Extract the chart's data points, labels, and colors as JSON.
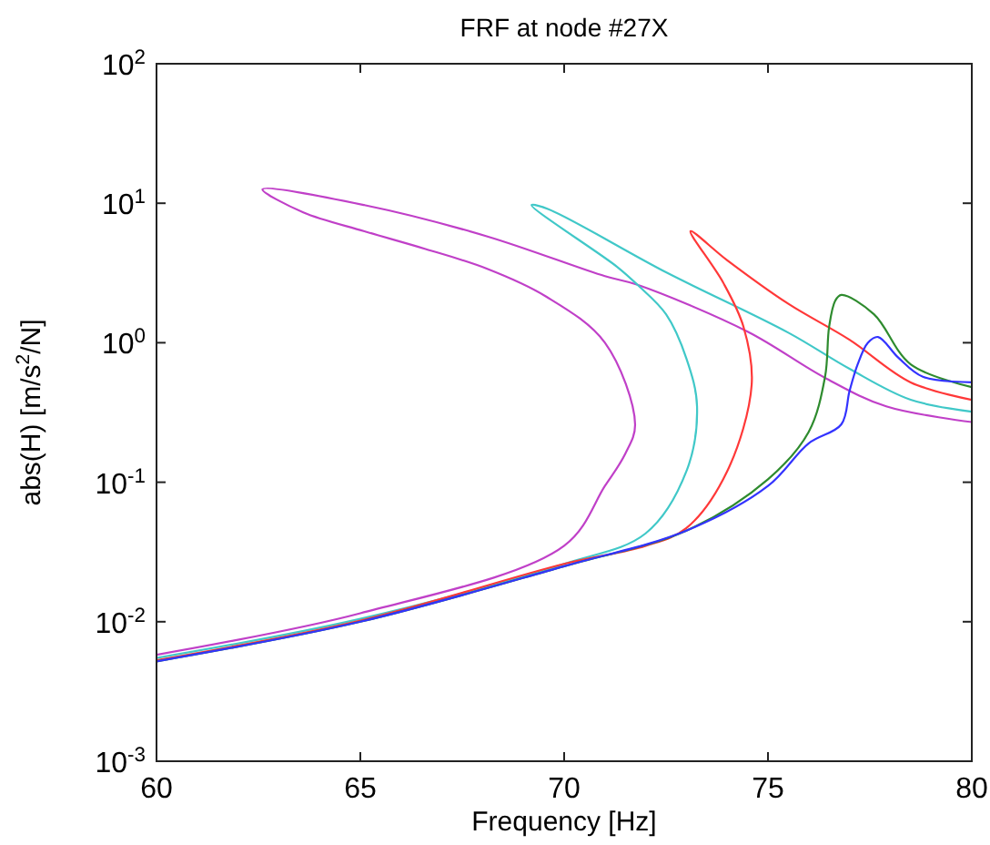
{
  "chart_data": {
    "type": "line",
    "title": "FRF at node #27X",
    "xlabel": "Frequency [Hz]",
    "ylabel": "abs(H) [m/s$^{2}$/N]",
    "log": "y",
    "grid": false,
    "marker": "none",
    "line_style": "solid",
    "xlim": [
      60,
      80
    ],
    "xticks": [
      60,
      65,
      70,
      75,
      80
    ],
    "ylim": [
      0.001,
      100
    ],
    "yticks": [
      {
        "value": 0.001,
        "label": "10$^{-3}$"
      },
      {
        "value": 0.01,
        "label": "10$^{-2}$"
      },
      {
        "value": 0.1,
        "label": "10$^{-1}$"
      },
      {
        "value": 1,
        "label": "10$^{0}$"
      },
      {
        "value": 10,
        "label": "10$^{1}$"
      },
      {
        "value": 100,
        "label": "10$^{2}$"
      }
    ],
    "series": [
      {
        "color": "#c040c8",
        "x": [
          60,
          65,
          70,
          71,
          71.5,
          71.74,
          71.0,
          69.55,
          68.1,
          66.6,
          65.1,
          63.6,
          62.6,
          65.1,
          68.1,
          71.0,
          71.8,
          74.5,
          76.4,
          77.9,
          80
        ],
        "values": [
          0.0058,
          0.0115,
          0.035,
          0.094,
          0.16,
          0.26,
          1.0,
          2.15,
          3.4,
          4.7,
          6.3,
          8.6,
          12.6,
          9.7,
          5.8,
          3.0,
          2.6,
          1.2,
          0.56,
          0.35,
          0.27
        ]
      },
      {
        "color": "#40c8c8",
        "x": [
          60,
          65,
          70,
          72,
          73,
          73.26,
          73.0,
          72.5,
          71.8,
          71.3,
          69.2,
          69.6,
          72.5,
          75.5,
          77,
          78.5,
          80
        ],
        "values": [
          0.0055,
          0.0105,
          0.026,
          0.043,
          0.12,
          0.35,
          0.77,
          1.6,
          2.6,
          3.5,
          9.7,
          9.1,
          3.2,
          1.18,
          0.65,
          0.39,
          0.32
        ]
      },
      {
        "color": "#ff3838",
        "x": [
          60,
          65,
          70,
          72,
          73,
          74,
          74.6,
          74.4,
          73.9,
          73.1,
          74.0,
          75.5,
          77,
          78.5,
          80
        ],
        "values": [
          0.0053,
          0.0102,
          0.026,
          0.035,
          0.047,
          0.12,
          0.5,
          1.3,
          2.7,
          6.3,
          3.9,
          1.9,
          1.05,
          0.52,
          0.39
        ]
      },
      {
        "color": "#2e8b2e",
        "x": [
          60,
          65,
          70,
          73,
          75,
          76,
          76.4,
          76.5,
          76.65,
          76.8,
          77.6,
          78.5,
          80
        ],
        "values": [
          0.0052,
          0.01,
          0.025,
          0.045,
          0.105,
          0.23,
          0.57,
          1.3,
          2.0,
          2.2,
          1.6,
          0.7,
          0.48
        ]
      },
      {
        "color": "#3333ff",
        "x": [
          60,
          65,
          70,
          73,
          75,
          76,
          76.8,
          77,
          77.2,
          77.45,
          77.7,
          78.2,
          78.8,
          80
        ],
        "values": [
          0.0052,
          0.01,
          0.025,
          0.045,
          0.094,
          0.19,
          0.26,
          0.45,
          0.7,
          1.0,
          1.1,
          0.78,
          0.57,
          0.52
        ]
      }
    ]
  }
}
